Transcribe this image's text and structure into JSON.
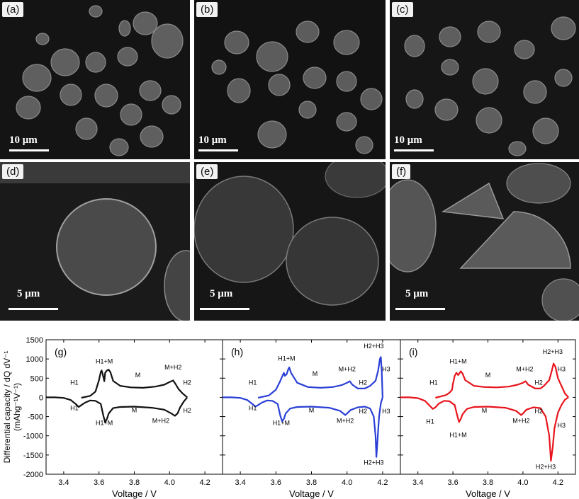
{
  "micrographs": [
    {
      "label": "(a)",
      "scale_bar": "10 μm"
    },
    {
      "label": "(b)",
      "scale_bar": "10 μm"
    },
    {
      "label": "(c)",
      "scale_bar": "10 μm"
    },
    {
      "label": "(d)",
      "scale_bar": "5 μm"
    },
    {
      "label": "(e)",
      "scale_bar": "5 μm"
    },
    {
      "label": "(f)",
      "scale_bar": "5 μm"
    }
  ],
  "chart_data": [
    {
      "type": "line",
      "panel_label": "(g)",
      "xlabel": "Voltage / V",
      "ylabel": "Differential capacity / dQ dV⁻¹ (mAhg⁻¹V⁻¹)",
      "xlim": [
        3.3,
        4.3
      ],
      "ylim": [
        -2000,
        1500
      ],
      "xticks": [
        "3.4",
        "3.6",
        "3.8",
        "4.0",
        "4.2"
      ],
      "yticks": [
        "1500",
        "1000",
        "500",
        "0",
        "-500",
        "-1000",
        "-1500",
        "-2000"
      ],
      "series": [
        {
          "color": "#111111",
          "charge": [
            [
              3.5,
              -10
            ],
            [
              3.55,
              40
            ],
            [
              3.58,
              150
            ],
            [
              3.6,
              450
            ],
            [
              3.61,
              660
            ],
            [
              3.615,
              700
            ],
            [
              3.62,
              620
            ],
            [
              3.63,
              420
            ],
            [
              3.635,
              640
            ],
            [
              3.645,
              700
            ],
            [
              3.655,
              720
            ],
            [
              3.665,
              650
            ],
            [
              3.68,
              430
            ],
            [
              3.72,
              300
            ],
            [
              3.78,
              260
            ],
            [
              3.85,
              250
            ],
            [
              3.92,
              280
            ],
            [
              3.97,
              330
            ],
            [
              4.0,
              400
            ],
            [
              4.02,
              440
            ],
            [
              4.035,
              340
            ],
            [
              4.05,
              220
            ],
            [
              4.07,
              120
            ],
            [
              4.09,
              40
            ],
            [
              4.1,
              0
            ]
          ],
          "discharge": [
            [
              4.1,
              0
            ],
            [
              4.08,
              -110
            ],
            [
              4.06,
              -260
            ],
            [
              4.045,
              -420
            ],
            [
              4.03,
              -480
            ],
            [
              4.01,
              -420
            ],
            [
              3.97,
              -320
            ],
            [
              3.9,
              -270
            ],
            [
              3.8,
              -240
            ],
            [
              3.72,
              -250
            ],
            [
              3.68,
              -280
            ],
            [
              3.655,
              -420
            ],
            [
              3.645,
              -560
            ],
            [
              3.635,
              -650
            ],
            [
              3.625,
              -480
            ],
            [
              3.61,
              -170
            ],
            [
              3.58,
              -90
            ],
            [
              3.55,
              -80
            ],
            [
              3.52,
              -140
            ],
            [
              3.5,
              -200
            ],
            [
              3.485,
              -250
            ],
            [
              3.47,
              -180
            ],
            [
              3.44,
              -70
            ],
            [
              3.4,
              -15
            ],
            [
              3.35,
              0
            ],
            [
              3.3,
              0
            ]
          ]
        }
      ],
      "annotations": [
        {
          "text": "H1+M",
          "x": 3.63,
          "y": 880
        },
        {
          "text": "H1",
          "x": 3.46,
          "y": 330
        },
        {
          "text": "M",
          "x": 3.82,
          "y": 520
        },
        {
          "text": "M+H2",
          "x": 4.02,
          "y": 730
        },
        {
          "text": "H2",
          "x": 4.1,
          "y": 330
        },
        {
          "text": "H1",
          "x": 3.46,
          "y": -330
        },
        {
          "text": "H1+M",
          "x": 3.63,
          "y": -720
        },
        {
          "text": "M",
          "x": 3.8,
          "y": -390
        },
        {
          "text": "M+H2",
          "x": 3.95,
          "y": -660
        },
        {
          "text": "H2",
          "x": 4.1,
          "y": -400
        }
      ]
    },
    {
      "type": "line",
      "panel_label": "(h)",
      "xlabel": "Voltage / V",
      "xlim": [
        3.3,
        4.3
      ],
      "ylim": [
        -2000,
        1500
      ],
      "xticks": [
        "3.4",
        "3.6",
        "3.8",
        "4.0",
        "4.2"
      ],
      "series": [
        {
          "color": "#2a3fd6",
          "charge": [
            [
              3.5,
              -10
            ],
            [
              3.56,
              50
            ],
            [
              3.6,
              200
            ],
            [
              3.62,
              380
            ],
            [
              3.635,
              540
            ],
            [
              3.645,
              640
            ],
            [
              3.65,
              560
            ],
            [
              3.66,
              600
            ],
            [
              3.67,
              740
            ],
            [
              3.675,
              780
            ],
            [
              3.685,
              640
            ],
            [
              3.72,
              380
            ],
            [
              3.78,
              270
            ],
            [
              3.85,
              250
            ],
            [
              3.92,
              270
            ],
            [
              3.97,
              320
            ],
            [
              4.0,
              380
            ],
            [
              4.015,
              420
            ],
            [
              4.03,
              330
            ],
            [
              4.06,
              230
            ],
            [
              4.1,
              230
            ],
            [
              4.13,
              300
            ],
            [
              4.16,
              430
            ],
            [
              4.175,
              700
            ],
            [
              4.185,
              1000
            ],
            [
              4.19,
              1050
            ],
            [
              4.195,
              700
            ],
            [
              4.2,
              0
            ]
          ],
          "discharge": [
            [
              4.2,
              0
            ],
            [
              4.19,
              -150
            ],
            [
              4.18,
              -500
            ],
            [
              4.17,
              -1200
            ],
            [
              4.165,
              -1550
            ],
            [
              4.16,
              -1000
            ],
            [
              4.15,
              -500
            ],
            [
              4.13,
              -290
            ],
            [
              4.1,
              -240
            ],
            [
              4.06,
              -260
            ],
            [
              4.02,
              -330
            ],
            [
              4.0,
              -420
            ],
            [
              3.99,
              -460
            ],
            [
              3.96,
              -350
            ],
            [
              3.9,
              -270
            ],
            [
              3.8,
              -240
            ],
            [
              3.72,
              -250
            ],
            [
              3.68,
              -290
            ],
            [
              3.655,
              -420
            ],
            [
              3.645,
              -560
            ],
            [
              3.635,
              -620
            ],
            [
              3.625,
              -480
            ],
            [
              3.61,
              -170
            ],
            [
              3.58,
              -90
            ],
            [
              3.55,
              -80
            ],
            [
              3.52,
              -140
            ],
            [
              3.5,
              -200
            ],
            [
              3.485,
              -240
            ],
            [
              3.47,
              -180
            ],
            [
              3.44,
              -70
            ],
            [
              3.4,
              -15
            ],
            [
              3.35,
              0
            ],
            [
              3.3,
              0
            ]
          ]
        }
      ],
      "annotations": [
        {
          "text": "H2+H3",
          "x": 4.15,
          "y": 1280
        },
        {
          "text": "H1+M",
          "x": 3.66,
          "y": 960
        },
        {
          "text": "M",
          "x": 3.82,
          "y": 560
        },
        {
          "text": "M+H2",
          "x": 4.0,
          "y": 680
        },
        {
          "text": "H3",
          "x": 4.22,
          "y": 680
        },
        {
          "text": "H1",
          "x": 3.47,
          "y": 330
        },
        {
          "text": "H2",
          "x": 4.09,
          "y": 330
        },
        {
          "text": "H1",
          "x": 3.47,
          "y": -330
        },
        {
          "text": "H1+M",
          "x": 3.63,
          "y": -720
        },
        {
          "text": "M",
          "x": 3.8,
          "y": -390
        },
        {
          "text": "M+H2",
          "x": 3.99,
          "y": -660
        },
        {
          "text": "H2",
          "x": 4.09,
          "y": -420
        },
        {
          "text": "H3",
          "x": 4.22,
          "y": -420
        },
        {
          "text": "H2+H3",
          "x": 4.15,
          "y": -1750
        }
      ]
    },
    {
      "type": "line",
      "panel_label": "(i)",
      "xlabel": "Voltage / V",
      "xlim": [
        3.3,
        4.3
      ],
      "ylim": [
        -2000,
        1500
      ],
      "xticks": [
        "3.4",
        "3.6",
        "3.8",
        "4.0",
        "4.2"
      ],
      "series": [
        {
          "color": "#e8141c",
          "charge": [
            [
              3.5,
              -10
            ],
            [
              3.56,
              60
            ],
            [
              3.58,
              120
            ],
            [
              3.595,
              200
            ],
            [
              3.6,
              350
            ],
            [
              3.61,
              560
            ],
            [
              3.62,
              640
            ],
            [
              3.63,
              580
            ],
            [
              3.645,
              680
            ],
            [
              3.655,
              620
            ],
            [
              3.67,
              450
            ],
            [
              3.72,
              300
            ],
            [
              3.78,
              270
            ],
            [
              3.85,
              260
            ],
            [
              3.92,
              280
            ],
            [
              3.97,
              330
            ],
            [
              4.0,
              380
            ],
            [
              4.015,
              420
            ],
            [
              4.03,
              330
            ],
            [
              4.07,
              230
            ],
            [
              4.1,
              230
            ],
            [
              4.12,
              300
            ],
            [
              4.15,
              450
            ],
            [
              4.165,
              700
            ],
            [
              4.175,
              880
            ],
            [
              4.185,
              800
            ],
            [
              4.2,
              500
            ],
            [
              4.22,
              300
            ],
            [
              4.24,
              100
            ],
            [
              4.26,
              0
            ]
          ],
          "discharge": [
            [
              4.26,
              0
            ],
            [
              4.24,
              -60
            ],
            [
              4.22,
              -200
            ],
            [
              4.2,
              -400
            ],
            [
              4.18,
              -800
            ],
            [
              4.17,
              -1300
            ],
            [
              4.16,
              -1650
            ],
            [
              4.15,
              -1000
            ],
            [
              4.13,
              -500
            ],
            [
              4.1,
              -280
            ],
            [
              4.06,
              -260
            ],
            [
              4.02,
              -320
            ],
            [
              4.0,
              -420
            ],
            [
              3.99,
              -460
            ],
            [
              3.96,
              -350
            ],
            [
              3.9,
              -270
            ],
            [
              3.8,
              -240
            ],
            [
              3.72,
              -250
            ],
            [
              3.68,
              -300
            ],
            [
              3.655,
              -440
            ],
            [
              3.645,
              -560
            ],
            [
              3.635,
              -640
            ],
            [
              3.625,
              -480
            ],
            [
              3.61,
              -200
            ],
            [
              3.58,
              -100
            ],
            [
              3.55,
              -90
            ],
            [
              3.52,
              -160
            ],
            [
              3.5,
              -260
            ],
            [
              3.485,
              -300
            ],
            [
              3.47,
              -230
            ],
            [
              3.44,
              -90
            ],
            [
              3.4,
              -20
            ],
            [
              3.35,
              0
            ],
            [
              3.3,
              0
            ]
          ]
        }
      ],
      "annotations": [
        {
          "text": "H1+M",
          "x": 3.63,
          "y": 880
        },
        {
          "text": "H2+H3",
          "x": 4.17,
          "y": 1130
        },
        {
          "text": "H1",
          "x": 3.49,
          "y": 330
        },
        {
          "text": "M",
          "x": 3.8,
          "y": 520
        },
        {
          "text": "M+H2",
          "x": 4.01,
          "y": 680
        },
        {
          "text": "H3",
          "x": 4.22,
          "y": 680
        },
        {
          "text": "H2",
          "x": 4.09,
          "y": 330
        },
        {
          "text": "H1",
          "x": 3.47,
          "y": -680
        },
        {
          "text": "M",
          "x": 3.78,
          "y": -400
        },
        {
          "text": "H1+M",
          "x": 3.63,
          "y": -1030
        },
        {
          "text": "M+H2",
          "x": 3.99,
          "y": -660
        },
        {
          "text": "H2",
          "x": 4.09,
          "y": -420
        },
        {
          "text": "H3",
          "x": 4.22,
          "y": -780
        },
        {
          "text": "H2+H3",
          "x": 4.13,
          "y": -1860
        }
      ]
    }
  ]
}
